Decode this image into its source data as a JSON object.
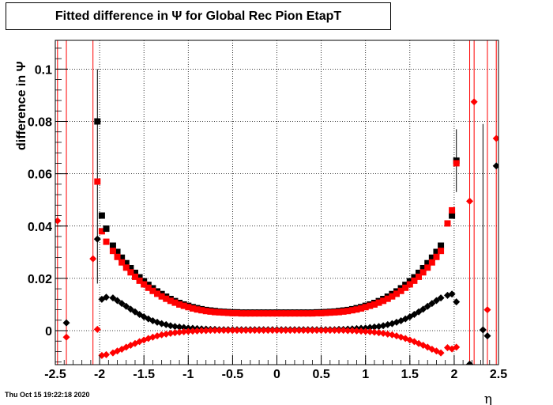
{
  "title": "Fitted difference in  Ψ  for Global Rec Pion EtapT",
  "footer": "Thu Oct 15 19:22:18 2020",
  "chart_data": {
    "type": "scatter",
    "title": "Fitted difference in  Ψ  for Global Rec Pion EtapT",
    "xlabel": "η",
    "ylabel": "difference in  Ψ",
    "xlim": [
      -2.5,
      2.5
    ],
    "ylim": [
      -0.013,
      0.111
    ],
    "x_ticks": [
      "-2.5",
      "-2",
      "-1.5",
      "-1",
      "-0.5",
      "0",
      "0.5",
      "1",
      "1.5",
      "2",
      "2.5"
    ],
    "y_ticks": [
      "0",
      "0.02",
      "0.04",
      "0.06",
      "0.08",
      "0.1"
    ],
    "grid": true,
    "series": [
      {
        "marker": "square",
        "color": "#000000",
        "x": [
          -1.85,
          -1.8,
          -1.75,
          -1.7,
          -1.65,
          -1.6,
          -1.55,
          -1.5,
          -1.45,
          -1.4,
          -1.35,
          -1.3,
          -1.25,
          -1.2,
          -1.15,
          -1.1,
          -1.05,
          -1.0,
          -0.95,
          -0.9,
          -0.85,
          -0.8,
          -0.75,
          -0.7,
          -0.65,
          -0.6,
          -0.55,
          -0.5,
          -0.45,
          -0.4,
          -0.35,
          -0.3,
          -0.25,
          -0.2,
          -0.15,
          -0.1,
          -0.05,
          0.0,
          0.05,
          0.1,
          0.15,
          0.2,
          0.25,
          0.3,
          0.35,
          0.4,
          0.45,
          0.5,
          0.55,
          0.6,
          0.65,
          0.7,
          0.75,
          0.8,
          0.85,
          0.9,
          0.95,
          1.0,
          1.05,
          1.1,
          1.15,
          1.2,
          1.25,
          1.3,
          1.35,
          1.4,
          1.45,
          1.5,
          1.55,
          1.6,
          1.65,
          1.7,
          1.75,
          1.8,
          1.85
        ],
        "y": [
          0.0325,
          0.0301,
          0.0279,
          0.0258,
          0.0239,
          0.0221,
          0.0204,
          0.0189,
          0.0175,
          0.0162,
          0.015,
          0.014,
          0.013,
          0.0121,
          0.0113,
          0.0106,
          0.01,
          0.0095,
          0.009,
          0.0086,
          0.0082,
          0.0079,
          0.0077,
          0.0075,
          0.0073,
          0.0072,
          0.0071,
          0.007,
          0.007,
          0.0069,
          0.0069,
          0.0069,
          0.0069,
          0.0069,
          0.0069,
          0.0069,
          0.0069,
          0.0069,
          0.0069,
          0.0069,
          0.0069,
          0.0069,
          0.0069,
          0.0069,
          0.0069,
          0.0069,
          0.007,
          0.007,
          0.0071,
          0.0072,
          0.0073,
          0.0075,
          0.0077,
          0.0079,
          0.0082,
          0.0086,
          0.009,
          0.0095,
          0.01,
          0.0106,
          0.0113,
          0.0121,
          0.013,
          0.014,
          0.015,
          0.0162,
          0.0175,
          0.0189,
          0.0204,
          0.0221,
          0.0239,
          0.0258,
          0.0279,
          0.0301,
          0.0325
        ]
      },
      {
        "marker": "square",
        "color": "#ff0000",
        "x": [
          -1.85,
          -1.8,
          -1.75,
          -1.7,
          -1.65,
          -1.6,
          -1.55,
          -1.5,
          -1.45,
          -1.4,
          -1.35,
          -1.3,
          -1.25,
          -1.2,
          -1.15,
          -1.1,
          -1.05,
          -1.0,
          -0.95,
          -0.9,
          -0.85,
          -0.8,
          -0.75,
          -0.7,
          -0.65,
          -0.6,
          -0.55,
          -0.5,
          -0.45,
          -0.4,
          -0.35,
          -0.3,
          -0.25,
          -0.2,
          -0.15,
          -0.1,
          -0.05,
          0.0,
          0.05,
          0.1,
          0.15,
          0.2,
          0.25,
          0.3,
          0.35,
          0.4,
          0.45,
          0.5,
          0.55,
          0.6,
          0.65,
          0.7,
          0.75,
          0.8,
          0.85,
          0.9,
          0.95,
          1.0,
          1.05,
          1.1,
          1.15,
          1.2,
          1.25,
          1.3,
          1.35,
          1.4,
          1.45,
          1.5,
          1.55,
          1.6,
          1.65,
          1.7,
          1.75,
          1.8,
          1.85
        ],
        "y": [
          0.0305,
          0.0282,
          0.0261,
          0.0241,
          0.0223,
          0.0206,
          0.0191,
          0.0177,
          0.0164,
          0.0152,
          0.0141,
          0.0131,
          0.0122,
          0.0114,
          0.0107,
          0.01,
          0.0095,
          0.009,
          0.0085,
          0.0081,
          0.0078,
          0.0075,
          0.0073,
          0.0071,
          0.007,
          0.0069,
          0.0068,
          0.0067,
          0.0067,
          0.0066,
          0.0066,
          0.0066,
          0.0066,
          0.0066,
          0.0066,
          0.0066,
          0.0066,
          0.0066,
          0.0066,
          0.0066,
          0.0066,
          0.0066,
          0.0066,
          0.0066,
          0.0066,
          0.0066,
          0.0067,
          0.0067,
          0.0068,
          0.0069,
          0.007,
          0.0071,
          0.0073,
          0.0075,
          0.0078,
          0.0081,
          0.0085,
          0.009,
          0.0095,
          0.01,
          0.0107,
          0.0114,
          0.0122,
          0.0131,
          0.0141,
          0.0152,
          0.0164,
          0.0177,
          0.0191,
          0.0206,
          0.0223,
          0.0241,
          0.0261,
          0.0282,
          0.0305
        ]
      },
      {
        "marker": "diamond",
        "color": "#000000",
        "x": [
          -1.85,
          -1.8,
          -1.75,
          -1.7,
          -1.65,
          -1.6,
          -1.55,
          -1.5,
          -1.45,
          -1.4,
          -1.35,
          -1.3,
          -1.25,
          -1.2,
          -1.15,
          -1.1,
          -1.05,
          -1.0,
          -0.95,
          -0.9,
          -0.85,
          -0.8,
          -0.75,
          -0.7,
          -0.65,
          -0.6,
          -0.55,
          -0.5,
          -0.45,
          -0.4,
          -0.35,
          -0.3,
          -0.25,
          -0.2,
          -0.15,
          -0.1,
          -0.05,
          0.0,
          0.05,
          0.1,
          0.15,
          0.2,
          0.25,
          0.3,
          0.35,
          0.4,
          0.45,
          0.5,
          0.55,
          0.6,
          0.65,
          0.7,
          0.75,
          0.8,
          0.85,
          0.9,
          0.95,
          1.0,
          1.05,
          1.1,
          1.15,
          1.2,
          1.25,
          1.3,
          1.35,
          1.4,
          1.45,
          1.5,
          1.55,
          1.6,
          1.65,
          1.7,
          1.75,
          1.8,
          1.85
        ],
        "y": [
          0.0125,
          0.0115,
          0.0104,
          0.0093,
          0.0082,
          0.0072,
          0.0062,
          0.0053,
          0.0045,
          0.0038,
          0.0032,
          0.0027,
          0.0023,
          0.0019,
          0.0016,
          0.0014,
          0.0012,
          0.001,
          0.0009,
          0.0008,
          0.0007,
          0.0006,
          0.0005,
          0.0005,
          0.0004,
          0.0004,
          0.0004,
          0.0004,
          0.0004,
          0.0004,
          0.0004,
          0.0004,
          0.0004,
          0.0004,
          0.0004,
          0.0004,
          0.0004,
          0.0004,
          0.0004,
          0.0004,
          0.0004,
          0.0004,
          0.0004,
          0.0004,
          0.0004,
          0.0004,
          0.0004,
          0.0004,
          0.0004,
          0.0004,
          0.0004,
          0.0005,
          0.0005,
          0.0006,
          0.0007,
          0.0008,
          0.0009,
          0.001,
          0.0012,
          0.0014,
          0.0016,
          0.0019,
          0.0023,
          0.0027,
          0.0032,
          0.0038,
          0.0045,
          0.0053,
          0.0062,
          0.0072,
          0.0082,
          0.0093,
          0.0104,
          0.0115,
          0.0125
        ]
      },
      {
        "marker": "diamond",
        "color": "#ff0000",
        "x": [
          -1.85,
          -1.8,
          -1.75,
          -1.7,
          -1.65,
          -1.6,
          -1.55,
          -1.5,
          -1.45,
          -1.4,
          -1.35,
          -1.3,
          -1.25,
          -1.2,
          -1.15,
          -1.1,
          -1.05,
          -1.0,
          -0.95,
          -0.9,
          -0.85,
          -0.8,
          -0.75,
          -0.7,
          -0.65,
          -0.6,
          -0.55,
          -0.5,
          -0.45,
          -0.4,
          -0.35,
          -0.3,
          -0.25,
          -0.2,
          -0.15,
          -0.1,
          -0.05,
          0.0,
          0.05,
          0.1,
          0.15,
          0.2,
          0.25,
          0.3,
          0.35,
          0.4,
          0.45,
          0.5,
          0.55,
          0.6,
          0.65,
          0.7,
          0.75,
          0.8,
          0.85,
          0.9,
          0.95,
          1.0,
          1.05,
          1.1,
          1.15,
          1.2,
          1.25,
          1.3,
          1.35,
          1.4,
          1.45,
          1.5,
          1.55,
          1.6,
          1.65,
          1.7,
          1.75,
          1.8,
          1.85
        ],
        "y": [
          -0.0085,
          -0.0078,
          -0.0071,
          -0.0063,
          -0.0056,
          -0.0049,
          -0.0042,
          -0.0036,
          -0.003,
          -0.0025,
          -0.002,
          -0.0016,
          -0.0013,
          -0.001,
          -0.0008,
          -0.0006,
          -0.0004,
          -0.0003,
          -0.0002,
          -0.0001,
          0.0,
          0.0,
          0.0001,
          0.0001,
          0.0001,
          0.0001,
          0.0001,
          0.0001,
          0.0001,
          0.0001,
          0.0001,
          0.0001,
          0.0001,
          0.0001,
          0.0001,
          0.0001,
          0.0001,
          0.0001,
          0.0001,
          0.0001,
          0.0001,
          0.0001,
          0.0001,
          0.0001,
          0.0001,
          0.0001,
          0.0001,
          0.0001,
          0.0001,
          0.0001,
          0.0001,
          0.0001,
          0.0001,
          0.0,
          0.0,
          -0.0001,
          -0.0002,
          -0.0003,
          -0.0004,
          -0.0006,
          -0.0008,
          -0.001,
          -0.0013,
          -0.0016,
          -0.002,
          -0.0025,
          -0.003,
          -0.0036,
          -0.0042,
          -0.0049,
          -0.0056,
          -0.0063,
          -0.0071,
          -0.0078,
          -0.0085
        ]
      }
    ],
    "edge_points": [
      {
        "x": -2.475,
        "y": 0.042,
        "marker": "diamond",
        "color": "#ff0000"
      },
      {
        "x": -2.375,
        "y": 0.003,
        "marker": "diamond",
        "color": "#000000"
      },
      {
        "x": -2.375,
        "y": -0.0025,
        "marker": "diamond",
        "color": "#ff0000"
      },
      {
        "x": -2.075,
        "y": 0.0275,
        "marker": "diamond",
        "color": "#ff0000"
      },
      {
        "x": -2.025,
        "y": 0.08,
        "marker": "square",
        "color": "#000000"
      },
      {
        "x": -2.025,
        "y": 0.057,
        "marker": "square",
        "color": "#ff0000"
      },
      {
        "x": -2.025,
        "y": 0.035,
        "marker": "diamond",
        "color": "#000000"
      },
      {
        "x": -2.025,
        "y": 0.0005,
        "marker": "diamond",
        "color": "#ff0000"
      },
      {
        "x": -1.975,
        "y": 0.044,
        "marker": "square",
        "color": "#000000"
      },
      {
        "x": -1.975,
        "y": 0.038,
        "marker": "square",
        "color": "#ff0000"
      },
      {
        "x": -1.975,
        "y": 0.012,
        "marker": "diamond",
        "color": "#000000"
      },
      {
        "x": -1.975,
        "y": -0.0095,
        "marker": "diamond",
        "color": "#ff0000"
      },
      {
        "x": -1.925,
        "y": 0.039,
        "marker": "square",
        "color": "#000000"
      },
      {
        "x": -1.925,
        "y": 0.034,
        "marker": "square",
        "color": "#ff0000"
      },
      {
        "x": -1.925,
        "y": 0.0128,
        "marker": "diamond",
        "color": "#000000"
      },
      {
        "x": -1.925,
        "y": -0.0092,
        "marker": "diamond",
        "color": "#ff0000"
      },
      {
        "x": 1.925,
        "y": 0.0135,
        "marker": "diamond",
        "color": "#000000"
      },
      {
        "x": 1.925,
        "y": 0.041,
        "marker": "square",
        "color": "#ff0000"
      },
      {
        "x": 1.925,
        "y": -0.0065,
        "marker": "diamond",
        "color": "#ff0000"
      },
      {
        "x": 1.975,
        "y": 0.044,
        "marker": "square",
        "color": "#000000"
      },
      {
        "x": 1.975,
        "y": 0.046,
        "marker": "square",
        "color": "#ff0000"
      },
      {
        "x": 1.975,
        "y": 0.014,
        "marker": "diamond",
        "color": "#000000"
      },
      {
        "x": 1.975,
        "y": -0.007,
        "marker": "diamond",
        "color": "#ff0000"
      },
      {
        "x": 2.025,
        "y": 0.065,
        "marker": "square",
        "color": "#000000"
      },
      {
        "x": 2.025,
        "y": 0.064,
        "marker": "square",
        "color": "#ff0000"
      },
      {
        "x": 2.025,
        "y": 0.011,
        "marker": "diamond",
        "color": "#000000"
      },
      {
        "x": 2.025,
        "y": -0.0063,
        "marker": "diamond",
        "color": "#ff0000"
      },
      {
        "x": 2.175,
        "y": -0.0128,
        "marker": "diamond",
        "color": "#000000"
      },
      {
        "x": 2.175,
        "y": 0.0495,
        "marker": "diamond",
        "color": "#ff0000"
      },
      {
        "x": 2.225,
        "y": 0.0875,
        "marker": "diamond",
        "color": "#ff0000"
      },
      {
        "x": 2.325,
        "y": 0.0003,
        "marker": "diamond",
        "color": "#000000"
      },
      {
        "x": 2.375,
        "y": -0.002,
        "marker": "diamond",
        "color": "#000000"
      },
      {
        "x": 2.375,
        "y": 0.008,
        "marker": "diamond",
        "color": "#ff0000"
      },
      {
        "x": 2.475,
        "y": 0.063,
        "marker": "diamond",
        "color": "#000000"
      },
      {
        "x": 2.475,
        "y": 0.0735,
        "marker": "diamond",
        "color": "#ff0000"
      }
    ],
    "error_bars": [
      {
        "x": -2.475,
        "color": "#ff0000"
      },
      {
        "x": -2.375,
        "color": "#ff0000"
      },
      {
        "x": -2.075,
        "color": "#ff0000"
      },
      {
        "x": -2.025,
        "y0": 0.018,
        "y1": 0.1,
        "color": "#000000"
      },
      {
        "x": 2.025,
        "y0": 0.053,
        "y1": 0.077,
        "color": "#000000"
      },
      {
        "x": 2.175,
        "color": "#ff0000"
      },
      {
        "x": 2.225,
        "color": "#ff0000"
      },
      {
        "x": 2.325,
        "y0": -0.013,
        "y1": 0.079,
        "color": "#000000"
      },
      {
        "x": 2.375,
        "color": "#ff0000"
      },
      {
        "x": 2.475,
        "color": "#ff0000"
      }
    ]
  }
}
